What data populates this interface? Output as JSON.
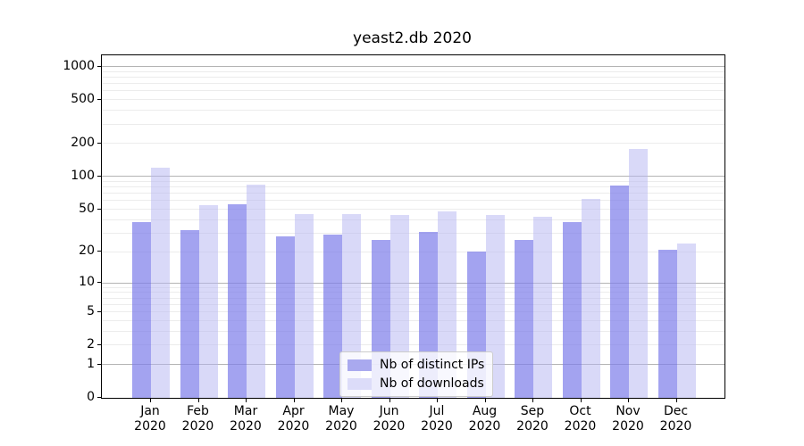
{
  "chart_data": {
    "type": "bar",
    "title": "yeast2.db 2020",
    "year": "2020",
    "months": [
      "Jan",
      "Feb",
      "Mar",
      "Apr",
      "May",
      "Jun",
      "Jul",
      "Aug",
      "Sep",
      "Oct",
      "Nov",
      "Dec"
    ],
    "categories": [
      "Jan 2020",
      "Feb 2020",
      "Mar 2020",
      "Apr 2020",
      "May 2020",
      "Jun 2020",
      "Jul 2020",
      "Aug 2020",
      "Sep 2020",
      "Oct 2020",
      "Nov 2020",
      "Dec 2020"
    ],
    "series": [
      {
        "name": "Nb of distinct IPs",
        "color": "rgba(124,124,234,0.70)",
        "swatch_color": "#a9a9ef",
        "values": [
          38,
          32,
          56,
          28,
          29,
          26,
          31,
          20,
          26,
          38,
          82,
          21
        ]
      },
      {
        "name": "Nb of downloads",
        "color": "rgba(179,179,241,0.50)",
        "swatch_color": "#dcdcf9",
        "values": [
          120,
          55,
          85,
          45,
          45,
          44,
          48,
          44,
          43,
          62,
          180,
          24
        ]
      }
    ],
    "yscale": "log1p",
    "ylim": [
      0,
      1264
    ],
    "y_ticks": [
      0,
      1,
      2,
      5,
      10,
      20,
      50,
      100,
      200,
      500,
      1000
    ],
    "xlabel": "",
    "ylabel": "",
    "grid": {
      "on": true,
      "major": [
        1,
        10,
        100,
        1000
      ],
      "minor": [
        2,
        3,
        4,
        5,
        6,
        7,
        8,
        9,
        20,
        30,
        40,
        50,
        60,
        70,
        80,
        90,
        200,
        300,
        400,
        500,
        600,
        700,
        800,
        900
      ],
      "major_color": "#b4b4b4",
      "minor_color": "#ececec"
    },
    "legend": {
      "position": "lower center"
    },
    "axis_color": "#000000"
  }
}
